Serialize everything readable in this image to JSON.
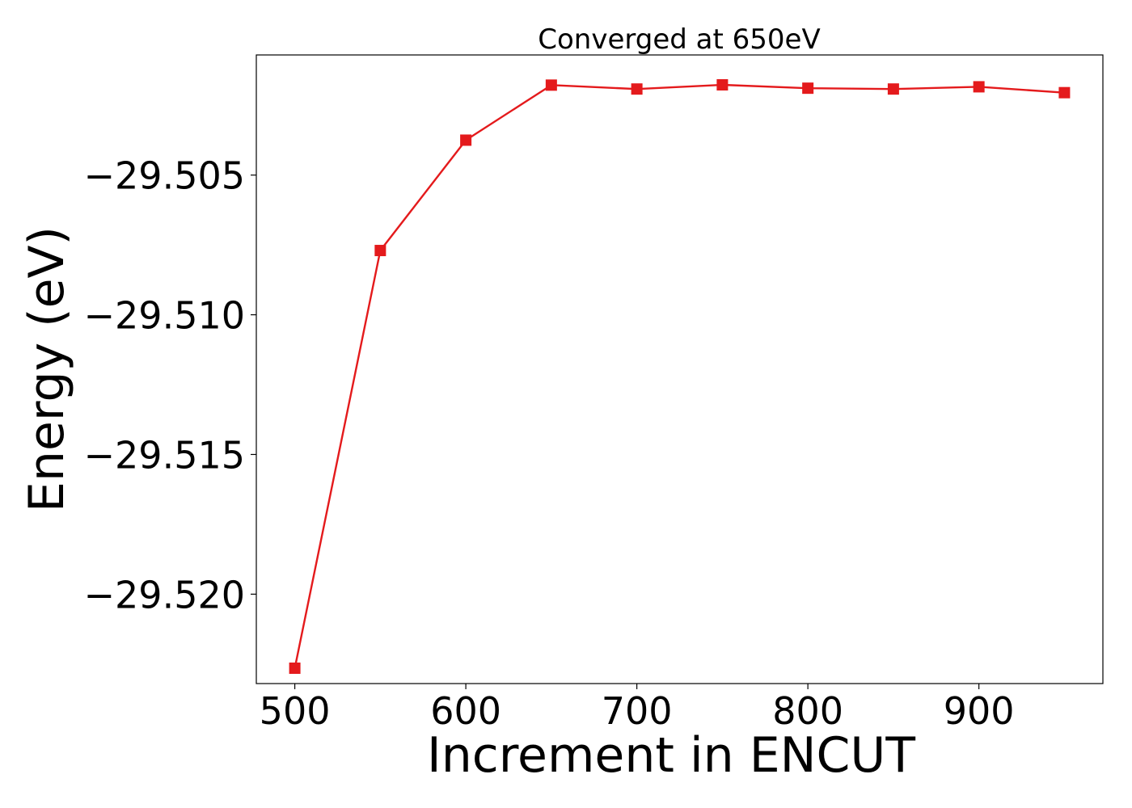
{
  "chart_data": {
    "type": "line",
    "title": "Converged at 650eV",
    "xlabel": "Increment in ENCUT",
    "ylabel": "Energy (eV)",
    "x": [
      500,
      550,
      600,
      650,
      700,
      750,
      800,
      850,
      900,
      950
    ],
    "series": [
      {
        "values": [
          -29.52265,
          -29.5077,
          -29.50375,
          -29.50178,
          -29.50192,
          -29.50177,
          -29.50189,
          -29.50192,
          -29.50184,
          -29.50205
        ],
        "color": "#e41a1c",
        "marker": "square"
      }
    ],
    "xlim": [
      477.5,
      972.5
    ],
    "ylim": [
      -29.5232,
      -29.5007
    ],
    "xticks": [
      500,
      600,
      700,
      800,
      900
    ],
    "xtick_labels": [
      "500",
      "600",
      "700",
      "800",
      "900"
    ],
    "yticks": [
      -29.505,
      -29.51,
      -29.515,
      -29.52
    ],
    "ytick_labels": [
      "−29.505",
      "−29.510",
      "−29.515",
      "−29.520"
    ],
    "grid": false,
    "legend": "none"
  }
}
